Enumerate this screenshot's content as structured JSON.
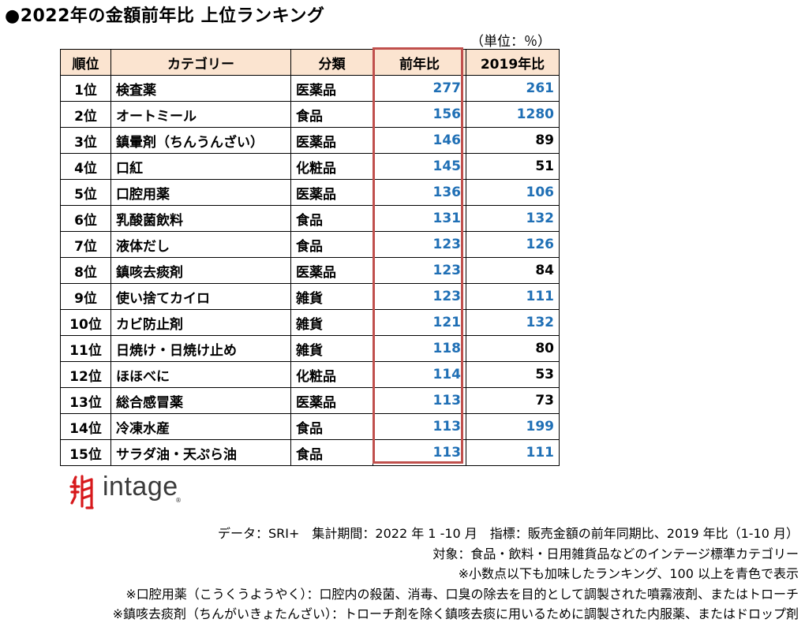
{
  "title": "●2022年の金額前年比 上位ランキング",
  "unit": "（単位：％）",
  "table": {
    "headers": [
      "順位",
      "カテゴリー",
      "分類",
      "前年比",
      "2019年比"
    ],
    "rows": [
      {
        "rank": "1位",
        "category": "検査薬",
        "type": "医薬品",
        "yoy": "277",
        "vs2019": "261"
      },
      {
        "rank": "2位",
        "category": "オートミール",
        "type": "食品",
        "yoy": "156",
        "vs2019": "1280"
      },
      {
        "rank": "3位",
        "category": "鎮暈剤（ちんうんざい）",
        "type": "医薬品",
        "yoy": "146",
        "vs2019": "89"
      },
      {
        "rank": "4位",
        "category": "口紅",
        "type": "化粧品",
        "yoy": "145",
        "vs2019": "51"
      },
      {
        "rank": "5位",
        "category": "口腔用薬",
        "type": "医薬品",
        "yoy": "136",
        "vs2019": "106"
      },
      {
        "rank": "6位",
        "category": "乳酸菌飲料",
        "type": "食品",
        "yoy": "131",
        "vs2019": "132"
      },
      {
        "rank": "7位",
        "category": "液体だし",
        "type": "食品",
        "yoy": "123",
        "vs2019": "126"
      },
      {
        "rank": "8位",
        "category": "鎮咳去痰剤",
        "type": "医薬品",
        "yoy": "123",
        "vs2019": "84"
      },
      {
        "rank": "9位",
        "category": "使い捨てカイロ",
        "type": "雑貨",
        "yoy": "123",
        "vs2019": "111"
      },
      {
        "rank": "10位",
        "category": "カビ防止剤",
        "type": "雑貨",
        "yoy": "121",
        "vs2019": "132"
      },
      {
        "rank": "11位",
        "category": "日焼け・日焼け止め",
        "type": "雑貨",
        "yoy": "118",
        "vs2019": "80"
      },
      {
        "rank": "12位",
        "category": "ほほべに",
        "type": "化粧品",
        "yoy": "114",
        "vs2019": "53"
      },
      {
        "rank": "13位",
        "category": "総合感冒薬",
        "type": "医薬品",
        "yoy": "113",
        "vs2019": "73"
      },
      {
        "rank": "14位",
        "category": "冷凍水産",
        "type": "食品",
        "yoy": "113",
        "vs2019": "199"
      },
      {
        "rank": "15位",
        "category": "サラダ油・天ぷら油",
        "type": "食品",
        "yoy": "113",
        "vs2019": "111"
      }
    ]
  },
  "logo": {
    "text": "intage",
    "reg": "®",
    "icon": "intage-logo-mark"
  },
  "notes": [
    "データ：SRI+　集計期間：2022 年 1 -10 月　指標：販売金額の前年同期比、2019 年比（1-10 月）",
    "対象：食品・飲料・日用雑貨品などのインテージ標準カテゴリー",
    "※小数点以下も加味したランキング、100 以上を青色で表示",
    "※口腔用薬（こうくうようやく）：口腔内の殺菌、消毒、口臭の除去を目的として調製された噴霧液剤、またはトローチ",
    "※鎮咳去痰剤（ちんがいきょたんざい）：トローチ剤を除く鎮咳去痰に用いるために調製された内服薬、またはドロップ剤"
  ],
  "colors": {
    "header_bg": "#fbe4d0",
    "highlight_border": "#c0504d",
    "blue_value": "#1f6fb5",
    "logo_red": "#d7191c"
  }
}
